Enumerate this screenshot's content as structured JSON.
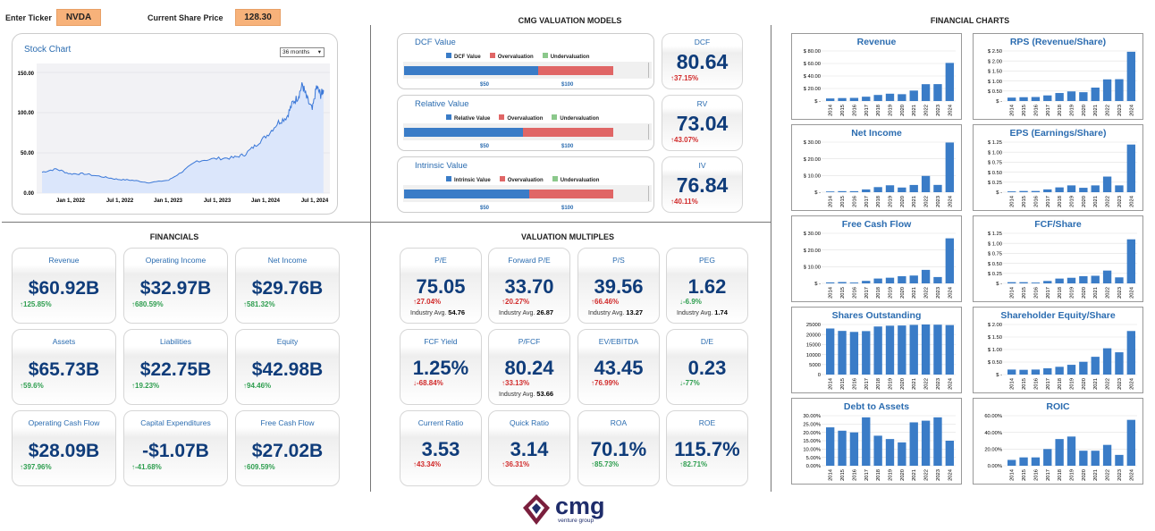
{
  "header": {
    "ticker_label": "Enter Ticker",
    "ticker_value": "NVDA",
    "price_label": "Current Share Price",
    "price_value": "128.30"
  },
  "sections": {
    "valuation_models": "CMG VALUATION MODELS",
    "financial_charts": "FINANCIAL CHARTS",
    "financials": "FINANCIALS",
    "valuation_multiples": "VALUATION MULTIPLES"
  },
  "stock_chart": {
    "title": "Stock Chart",
    "range_option": "36 months",
    "y_ticks": [
      "150.00",
      "100.00",
      "50.00",
      "0.00"
    ],
    "x_ticks": [
      "Jan 1, 2022",
      "Jul 1, 2022",
      "Jan 1, 2023",
      "Jul 1, 2023",
      "Jan 1, 2024",
      "Jul 1, 2024"
    ]
  },
  "models": [
    {
      "title": "DCF Value",
      "legend_value": "DCF Value",
      "legend_over": "Overvaluation",
      "legend_under": "Undervaluation",
      "tick_a": "$50",
      "tick_b": "$100",
      "value_fraction": 0.64,
      "card_title": "DCF",
      "card_value": "80.64",
      "card_change": "37.15%"
    },
    {
      "title": "Relative Value",
      "legend_value": "Relative Value",
      "legend_over": "Overvaluation",
      "legend_under": "Undervaluation",
      "tick_a": "$50",
      "tick_b": "$100",
      "value_fraction": 0.57,
      "card_title": "RV",
      "card_value": "73.04",
      "card_change": "43.07%"
    },
    {
      "title": "Intrinsic Value",
      "legend_value": "Intrinsic Value",
      "legend_over": "Overvaluation",
      "legend_under": "Undervaluation",
      "tick_a": "$50",
      "tick_b": "$100",
      "value_fraction": 0.6,
      "card_title": "IV",
      "card_value": "76.84",
      "card_change": "40.11%"
    }
  ],
  "financials": [
    {
      "title": "Revenue",
      "value": "$60.92B",
      "change": "125.85%",
      "dir": "up"
    },
    {
      "title": "Operating Income",
      "value": "$32.97B",
      "change": "680.59%",
      "dir": "up"
    },
    {
      "title": "Net Income",
      "value": "$29.76B",
      "change": "581.32%",
      "dir": "up"
    },
    {
      "title": "Assets",
      "value": "$65.73B",
      "change": "59.6%",
      "dir": "up"
    },
    {
      "title": "Liabilities",
      "value": "$22.75B",
      "change": "19.23%",
      "dir": "up"
    },
    {
      "title": "Equity",
      "value": "$42.98B",
      "change": "94.46%",
      "dir": "up"
    },
    {
      "title": "Operating Cash Flow",
      "value": "$28.09B",
      "change": "397.96%",
      "dir": "up"
    },
    {
      "title": "Capital Expenditures",
      "value": "-$1.07B",
      "change": "-41.68%",
      "dir": "up"
    },
    {
      "title": "Free Cash Flow",
      "value": "$27.02B",
      "change": "609.59%",
      "dir": "up"
    }
  ],
  "multiples": [
    {
      "title": "P/E",
      "value": "75.05",
      "change": "27.04%",
      "dir": "dn",
      "ind_label": "Industry Avg.",
      "ind_value": "54.76"
    },
    {
      "title": "Forward P/E",
      "value": "33.70",
      "change": "20.27%",
      "dir": "dn",
      "ind_label": "Industry Avg.",
      "ind_value": "26.87"
    },
    {
      "title": "P/S",
      "value": "39.56",
      "change": "66.46%",
      "dir": "dn",
      "ind_label": "Industry Avg.",
      "ind_value": "13.27"
    },
    {
      "title": "PEG",
      "value": "1.62",
      "change": "-6.9%",
      "dir": "up",
      "ind_label": "Industry Avg.",
      "ind_value": "1.74"
    },
    {
      "title": "FCF Yield",
      "value": "1.25%",
      "change": "-68.84%",
      "dir": "dn",
      "ind_label": "",
      "ind_value": ""
    },
    {
      "title": "P/FCF",
      "value": "80.24",
      "change": "33.13%",
      "dir": "dn",
      "ind_label": "Industry Avg.",
      "ind_value": "53.66"
    },
    {
      "title": "EV/EBITDA",
      "value": "43.45",
      "change": "76.99%",
      "dir": "dn",
      "ind_label": "",
      "ind_value": ""
    },
    {
      "title": "D/E",
      "value": "0.23",
      "change": "-77%",
      "dir": "up",
      "ind_label": "",
      "ind_value": ""
    },
    {
      "title": "Current Ratio",
      "value": "3.53",
      "change": "43.34%",
      "dir": "dn",
      "ind_label": "",
      "ind_value": ""
    },
    {
      "title": "Quick Ratio",
      "value": "3.14",
      "change": "36.31%",
      "dir": "dn",
      "ind_label": "",
      "ind_value": ""
    },
    {
      "title": "ROA",
      "value": "70.1%",
      "change": "85.73%",
      "dir": "up",
      "ind_label": "",
      "ind_value": ""
    },
    {
      "title": "ROE",
      "value": "115.7%",
      "change": "82.71%",
      "dir": "up",
      "ind_label": "",
      "ind_value": ""
    }
  ],
  "chart_data": [
    {
      "type": "bar",
      "title": "Revenue",
      "categories": [
        "2014",
        "2015",
        "2016",
        "2017",
        "2018",
        "2019",
        "2020",
        "2021",
        "2022",
        "2023",
        "2024"
      ],
      "values": [
        4.1,
        4.7,
        5.0,
        6.9,
        9.7,
        11.7,
        10.9,
        16.7,
        26.9,
        27.0,
        60.9
      ],
      "y_ticks": [
        "$ 80.00",
        "$ 60.00",
        "$ 40.00",
        "$ 20.00",
        "$ -"
      ],
      "ylim": [
        0,
        80
      ]
    },
    {
      "title": "RPS (Revenue/Share)",
      "type": "bar",
      "categories": [
        "2014",
        "2015",
        "2016",
        "2017",
        "2018",
        "2019",
        "2020",
        "2021",
        "2022",
        "2023",
        "2024"
      ],
      "values": [
        0.17,
        0.19,
        0.2,
        0.28,
        0.4,
        0.48,
        0.44,
        0.67,
        1.08,
        1.09,
        2.46
      ],
      "y_ticks": [
        "$ 2.50",
        "$ 2.00",
        "$ 1.50",
        "$ 1.00",
        "$ 0.50",
        "$ -"
      ],
      "ylim": [
        0,
        2.5
      ]
    },
    {
      "title": "Net Income",
      "type": "bar",
      "categories": [
        "2014",
        "2015",
        "2016",
        "2017",
        "2018",
        "2019",
        "2020",
        "2021",
        "2022",
        "2023",
        "2024"
      ],
      "values": [
        0.44,
        0.63,
        0.61,
        1.67,
        3.05,
        4.14,
        2.8,
        4.33,
        9.75,
        4.37,
        29.76
      ],
      "y_ticks": [
        "$ 30.00",
        "$ 20.00",
        "$ 10.00",
        "$ -"
      ],
      "ylim": [
        0,
        30
      ]
    },
    {
      "title": "EPS (Earnings/Share)",
      "type": "bar",
      "categories": [
        "2014",
        "2015",
        "2016",
        "2017",
        "2018",
        "2019",
        "2020",
        "2021",
        "2022",
        "2023",
        "2024"
      ],
      "values": [
        0.02,
        0.03,
        0.03,
        0.07,
        0.12,
        0.17,
        0.11,
        0.17,
        0.39,
        0.17,
        1.19
      ],
      "y_ticks": [
        "$ 1.25",
        "$ 1.00",
        "$ 0.75",
        "$ 0.50",
        "$ 0.25",
        "$ -"
      ],
      "ylim": [
        0,
        1.25
      ]
    },
    {
      "title": "Free Cash Flow",
      "type": "bar",
      "categories": [
        "2014",
        "2015",
        "2016",
        "2017",
        "2018",
        "2019",
        "2020",
        "2021",
        "2022",
        "2023",
        "2024"
      ],
      "values": [
        0.6,
        0.8,
        0.5,
        1.5,
        2.9,
        3.4,
        4.3,
        4.7,
        8.1,
        3.8,
        27.0
      ],
      "y_ticks": [
        "$ 30.00",
        "$ 20.00",
        "$ 10.00",
        "$ -"
      ],
      "ylim": [
        0,
        30
      ]
    },
    {
      "title": "FCF/Share",
      "type": "bar",
      "categories": [
        "2014",
        "2015",
        "2016",
        "2017",
        "2018",
        "2019",
        "2020",
        "2021",
        "2022",
        "2023",
        "2024"
      ],
      "values": [
        0.03,
        0.03,
        0.02,
        0.06,
        0.12,
        0.14,
        0.18,
        0.19,
        0.32,
        0.15,
        1.1
      ],
      "y_ticks": [
        "$ 1.25",
        "$ 1.00",
        "$ 0.75",
        "$ 0.50",
        "$ 0.25",
        "$ -"
      ],
      "ylim": [
        0,
        1.25
      ]
    },
    {
      "title": "Shares Outstanding",
      "type": "bar",
      "categories": [
        "2014",
        "2015",
        "2016",
        "2017",
        "2018",
        "2019",
        "2020",
        "2021",
        "2022",
        "2023",
        "2024"
      ],
      "values": [
        23000,
        21800,
        21300,
        21700,
        24000,
        24400,
        24500,
        24800,
        25100,
        24900,
        24700
      ],
      "y_ticks": [
        "25000",
        "20000",
        "15000",
        "10000",
        "5000",
        "0"
      ],
      "ylim": [
        0,
        25000
      ]
    },
    {
      "title": "Shareholder Equity/Share",
      "type": "bar",
      "categories": [
        "2014",
        "2015",
        "2016",
        "2017",
        "2018",
        "2019",
        "2020",
        "2021",
        "2022",
        "2023",
        "2024"
      ],
      "values": [
        0.2,
        0.19,
        0.2,
        0.25,
        0.31,
        0.39,
        0.51,
        0.71,
        1.05,
        0.89,
        1.74
      ],
      "y_ticks": [
        "$ 2.00",
        "$ 1.50",
        "$ 1.00",
        "$ 0.50",
        "$ -"
      ],
      "ylim": [
        0,
        2
      ]
    },
    {
      "title": "Debt to Assets",
      "type": "bar",
      "categories": [
        "2014",
        "2015",
        "2016",
        "2017",
        "2018",
        "2019",
        "2020",
        "2021",
        "2022",
        "2023",
        "2024"
      ],
      "values": [
        0.23,
        0.21,
        0.2,
        0.29,
        0.18,
        0.16,
        0.14,
        0.26,
        0.27,
        0.29,
        0.15
      ],
      "y_ticks": [
        "30.00%",
        "25.00%",
        "20.00%",
        "15.00%",
        "10.00%",
        "5.00%",
        "0.00%"
      ],
      "ylim": [
        0,
        0.3
      ]
    },
    {
      "title": "ROIC",
      "type": "bar",
      "categories": [
        "2014",
        "2015",
        "2016",
        "2017",
        "2018",
        "2019",
        "2020",
        "2021",
        "2022",
        "2023",
        "2024"
      ],
      "values": [
        0.07,
        0.1,
        0.1,
        0.2,
        0.32,
        0.35,
        0.18,
        0.18,
        0.25,
        0.13,
        0.55
      ],
      "y_ticks": [
        "60.00%",
        "40.00%",
        "20.00%",
        "0.00%"
      ],
      "ylim": [
        0,
        0.6
      ]
    }
  ],
  "logo": {
    "name": "cmg",
    "sub": "venture group"
  },
  "colors": {
    "bar": "#3a7cc7",
    "value_blue": "#0f3c7a",
    "title_blue": "#2b6cb0",
    "over": "#e06666",
    "under": "#8bc88b",
    "up": "#2e9e4f",
    "down": "#d12b2b"
  }
}
